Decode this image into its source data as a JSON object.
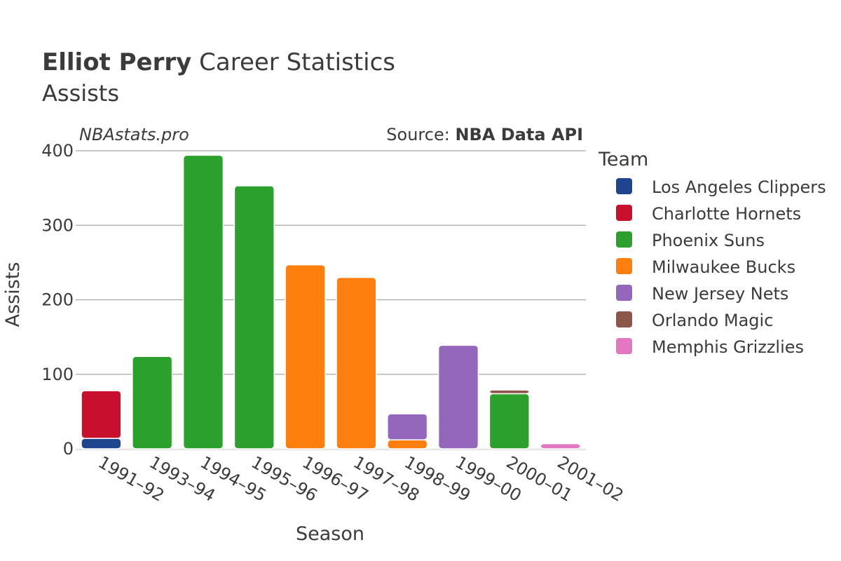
{
  "chart_data": {
    "type": "bar",
    "stacked": true,
    "title_bold": "Elliot Perry",
    "title_rest": " Career Statistics",
    "subtitle": "Assists",
    "watermark": "NBAstats.pro",
    "source_prefix": "Source: ",
    "source_name": "NBA Data API",
    "xlabel": "Season",
    "ylabel": "Assists",
    "ylim": [
      0,
      400
    ],
    "yticks": [
      0,
      100,
      200,
      300,
      400
    ],
    "grid": true,
    "legend_title": "Team",
    "legend_position": "right",
    "categories": [
      "1991–92",
      "1993–94",
      "1994–95",
      "1995–96",
      "1996–97",
      "1997–98",
      "1998–99",
      "1999–00",
      "2000–01",
      "2001–02"
    ],
    "series": [
      {
        "name": "Los Angeles Clippers",
        "color": "#1f4590",
        "values": [
          14,
          0,
          0,
          0,
          0,
          0,
          0,
          0,
          0,
          0
        ]
      },
      {
        "name": "Charlotte Hornets",
        "color": "#c8102e",
        "values": [
          64,
          0,
          0,
          0,
          0,
          0,
          0,
          0,
          0,
          0
        ]
      },
      {
        "name": "Phoenix Suns",
        "color": "#2ca02c",
        "values": [
          0,
          124,
          394,
          353,
          0,
          0,
          0,
          0,
          74,
          0
        ]
      },
      {
        "name": "Milwaukee Bucks",
        "color": "#ff7f0e",
        "values": [
          0,
          0,
          0,
          0,
          247,
          230,
          12,
          0,
          0,
          0
        ]
      },
      {
        "name": "New Jersey Nets",
        "color": "#9467bd",
        "values": [
          0,
          0,
          0,
          0,
          0,
          0,
          35,
          139,
          0,
          0
        ]
      },
      {
        "name": "Orlando Magic",
        "color": "#8c564b",
        "values": [
          0,
          0,
          0,
          0,
          0,
          0,
          0,
          0,
          5,
          0
        ]
      },
      {
        "name": "Memphis Grizzlies",
        "color": "#e377c2",
        "values": [
          0,
          0,
          0,
          0,
          0,
          0,
          0,
          0,
          0,
          7
        ]
      }
    ]
  }
}
